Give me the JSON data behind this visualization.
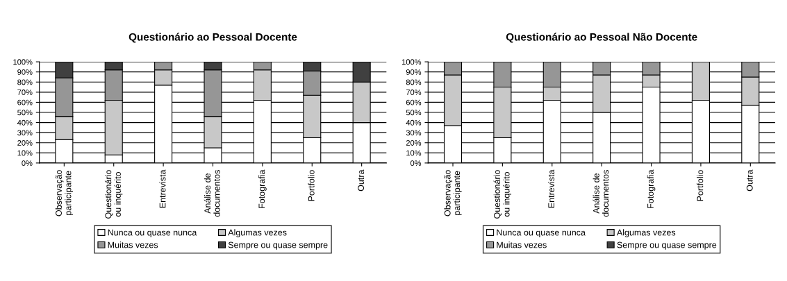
{
  "chart_data": [
    {
      "type": "bar",
      "title": "Questionário ao Pessoal Docente",
      "stacked": true,
      "grid": "y",
      "legend": "bottom",
      "categories": [
        "Observação\nparticipante",
        "Questionário\nou inquérito",
        "Entrevista",
        "Análise de\ndocumentos",
        "Fotografia",
        "Portfolio",
        "Outra"
      ],
      "ylim": [
        0,
        100
      ],
      "yticks": [
        {
          "value": 0,
          "label": "0%"
        },
        {
          "value": 10,
          "label": "10%"
        },
        {
          "value": 20,
          "label": "20%"
        },
        {
          "value": 30,
          "label": "30%"
        },
        {
          "value": 40,
          "label": "40%"
        },
        {
          "value": 50,
          "label": "50%"
        },
        {
          "value": 60,
          "label": "60%"
        },
        {
          "value": 70,
          "label": "70%"
        },
        {
          "value": 80,
          "label": "80%"
        },
        {
          "value": 90,
          "label": "90%"
        },
        {
          "value": 100,
          "label": "100%"
        }
      ],
      "series": [
        {
          "name": "Nunca ou quase nunca",
          "color": "#ffffff",
          "values": [
            23,
            8,
            77,
            15,
            62,
            25,
            40
          ]
        },
        {
          "name": "Algumas vezes",
          "color": "#c8c8c8",
          "values": [
            23,
            54,
            15,
            31,
            30,
            42,
            40
          ]
        },
        {
          "name": "Muitas vezes",
          "color": "#969696",
          "values": [
            38,
            30,
            8,
            46,
            8,
            24,
            0
          ]
        },
        {
          "name": "Sempre ou quase sempre",
          "color": "#404040",
          "values": [
            16,
            8,
            0,
            8,
            0,
            9,
            20
          ]
        }
      ]
    },
    {
      "type": "bar",
      "title": "Questionário ao Pessoal Não Docente",
      "stacked": true,
      "grid": "y",
      "legend": "bottom",
      "categories": [
        "Observação\nparticipante",
        "Questionário\nou inquérito",
        "Entrevista",
        "Análise de\ndocumentos",
        "Fotografia",
        "Portfolio",
        "Outra"
      ],
      "ylim": [
        0,
        100
      ],
      "yticks": [
        {
          "value": 0,
          "label": "0%"
        },
        {
          "value": 10,
          "label": "10%"
        },
        {
          "value": 20,
          "label": "20%"
        },
        {
          "value": 30,
          "label": "30%"
        },
        {
          "value": 40,
          "label": "40%"
        },
        {
          "value": 50,
          "label": "50%"
        },
        {
          "value": 60,
          "label": "60%"
        },
        {
          "value": 70,
          "label": "70%"
        },
        {
          "value": 80,
          "label": "80%"
        },
        {
          "value": 90,
          "label": "90%"
        },
        {
          "value": 100,
          "label": "100%"
        }
      ],
      "series": [
        {
          "name": "Nunca ou quase nunca",
          "color": "#ffffff",
          "values": [
            37,
            25,
            62,
            50,
            75,
            62,
            57
          ]
        },
        {
          "name": "Algumas vezes",
          "color": "#c8c8c8",
          "values": [
            50,
            50,
            13,
            37,
            12,
            38,
            28
          ]
        },
        {
          "name": "Muitas vezes",
          "color": "#969696",
          "values": [
            13,
            25,
            25,
            13,
            13,
            0,
            15
          ]
        },
        {
          "name": "Sempre ou quase sempre",
          "color": "#404040",
          "values": [
            0,
            0,
            0,
            0,
            0,
            0,
            0
          ]
        }
      ]
    }
  ]
}
